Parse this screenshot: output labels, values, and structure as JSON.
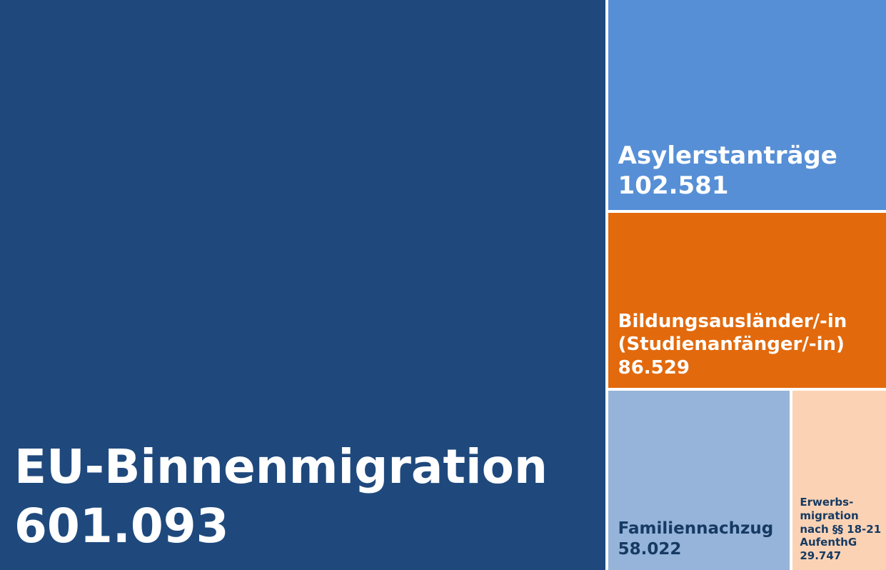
{
  "chart_data": {
    "type": "treemap",
    "categories": [
      "EU-Binnenmigration",
      "Asylerstanträge",
      "Bildungsausländer/-in (Studienanfänger/-in)",
      "Familiennachzug",
      "Erwerbs-migration nach §§ 18-21 AufenthG"
    ],
    "values": [
      601093,
      102581,
      86529,
      58022,
      29747
    ],
    "value_labels": [
      "601.093",
      "102.581",
      "86.529",
      "58.022",
      "29.747"
    ],
    "colors": [
      "#1f497d",
      "#568fd6",
      "#e2690c",
      "#96b4d9",
      "#fbd3b4"
    ]
  }
}
